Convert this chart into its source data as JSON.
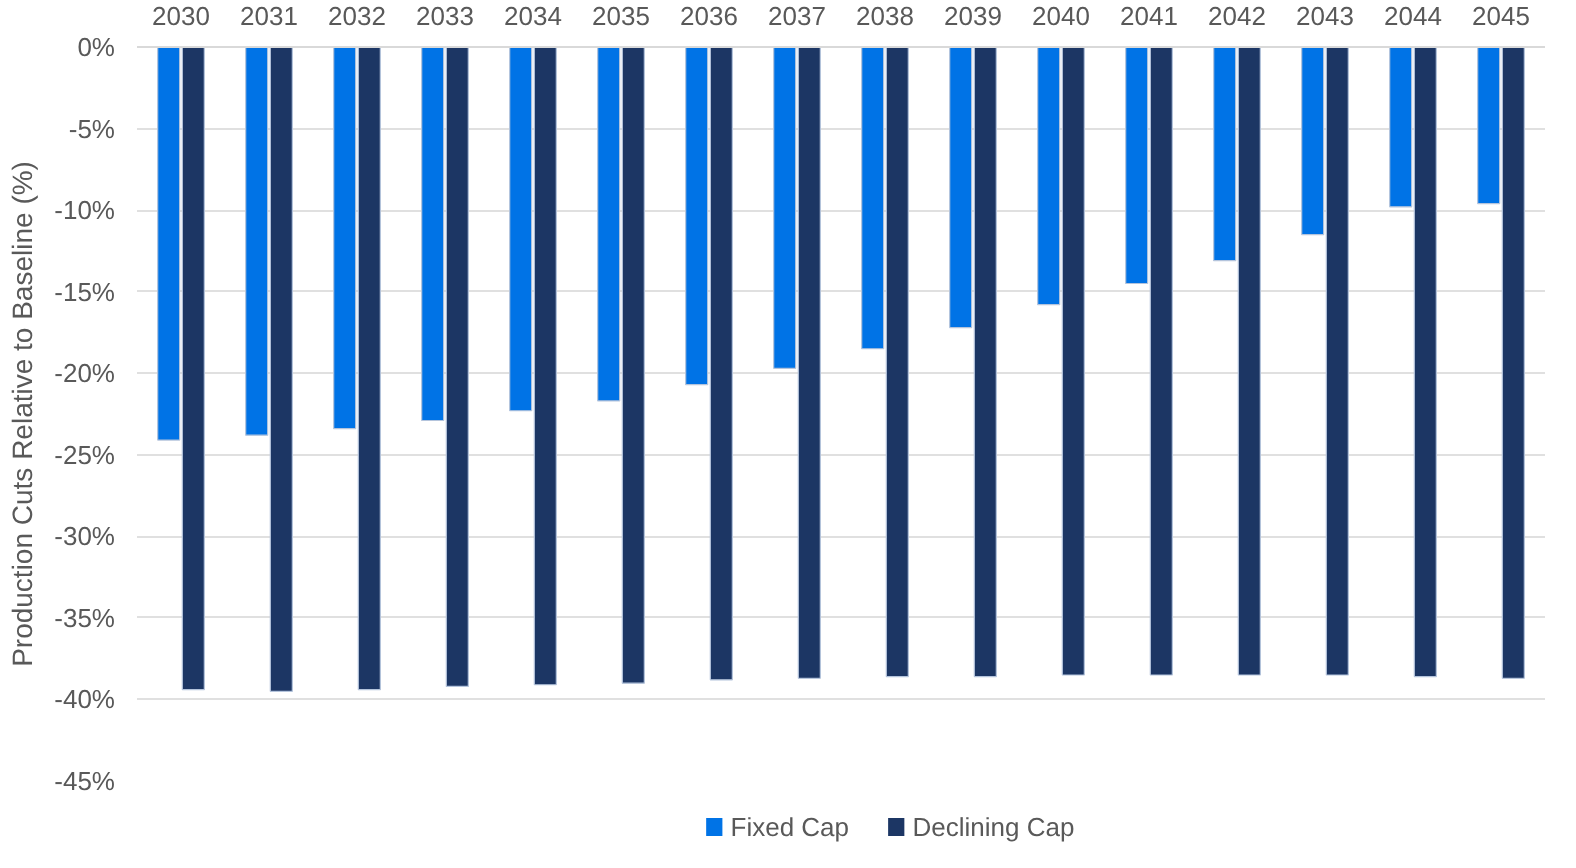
{
  "chart_data": {
    "type": "bar",
    "ylabel": "Production Cuts Relative to Baseline (%)",
    "categories": [
      "2030",
      "2031",
      "2032",
      "2033",
      "2034",
      "2035",
      "2036",
      "2037",
      "2038",
      "2039",
      "2040",
      "2041",
      "2042",
      "2043",
      "2044",
      "2045"
    ],
    "series": [
      {
        "name": "Fixed Cap",
        "color": "#0073e6",
        "values": [
          -24.1,
          -23.8,
          -23.4,
          -22.9,
          -22.3,
          -21.7,
          -20.7,
          -19.7,
          -18.5,
          -17.2,
          -15.8,
          -14.5,
          -13.1,
          -11.5,
          -9.8,
          -9.6
        ]
      },
      {
        "name": "Declining Cap",
        "color": "#1c3664",
        "values": [
          -39.4,
          -39.5,
          -39.4,
          -39.2,
          -39.1,
          -39.0,
          -38.8,
          -38.7,
          -38.6,
          -38.6,
          -38.5,
          -38.5,
          -38.5,
          -38.5,
          -38.6,
          -38.7
        ]
      }
    ],
    "ylim": [
      -45,
      0
    ],
    "yticks": [
      {
        "value": 0,
        "label": "0%"
      },
      {
        "value": -5,
        "label": "-5%"
      },
      {
        "value": -10,
        "label": "-10%"
      },
      {
        "value": -15,
        "label": "-15%"
      },
      {
        "value": -20,
        "label": "-20%"
      },
      {
        "value": -25,
        "label": "-25%"
      },
      {
        "value": -30,
        "label": "-30%"
      },
      {
        "value": -35,
        "label": "-35%"
      },
      {
        "value": -40,
        "label": "-40%"
      },
      {
        "value": -45,
        "label": "-45%"
      }
    ],
    "grid": "y",
    "legend": "bottom"
  }
}
